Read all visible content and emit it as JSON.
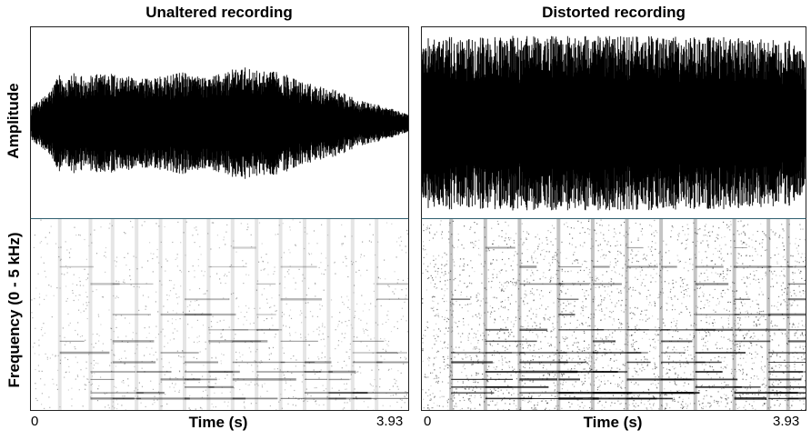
{
  "chart_data": [
    {
      "type": "waveform",
      "title": "Unaltered recording",
      "ylabel": "Amplitude",
      "xlabel": "Time (s)",
      "xlim": [
        0,
        3.93
      ],
      "x_ticks": [
        "0",
        "3.93"
      ],
      "envelope_x": [
        0,
        0.1,
        0.2,
        0.3,
        0.35,
        0.45,
        0.6,
        0.8,
        1.0,
        1.2,
        1.4,
        1.6,
        1.8,
        2.0,
        2.2,
        2.4,
        2.6,
        2.8,
        3.0,
        3.2,
        3.4,
        3.6,
        3.8,
        3.93
      ],
      "envelope_y": [
        0.18,
        0.25,
        0.35,
        0.55,
        0.4,
        0.55,
        0.5,
        0.55,
        0.5,
        0.48,
        0.5,
        0.55,
        0.48,
        0.55,
        0.6,
        0.55,
        0.55,
        0.45,
        0.4,
        0.35,
        0.25,
        0.2,
        0.14,
        0.1
      ]
    },
    {
      "type": "waveform",
      "title": "Distorted recording",
      "xlabel": "Time (s)",
      "xlim": [
        0,
        3.93
      ],
      "x_ticks": [
        "0",
        "3.93"
      ],
      "envelope_x": [
        0,
        0.2,
        0.5,
        1.0,
        1.5,
        2.0,
        2.5,
        3.0,
        3.5,
        3.8,
        3.93
      ],
      "envelope_y": [
        0.9,
        0.92,
        0.92,
        0.93,
        0.93,
        0.93,
        0.92,
        0.92,
        0.9,
        0.88,
        0.7
      ]
    },
    {
      "type": "heatmap",
      "subtype": "spectrogram",
      "ylabel": "Frequency (0 - 5 kHz)",
      "xlabel": "Time (s)",
      "xlim": [
        0,
        3.93
      ],
      "ylim_khz": [
        0,
        5
      ],
      "x_ticks": [
        "0",
        "3.93"
      ],
      "onsets_s": [
        0.3,
        0.62,
        0.85,
        1.1,
        1.35,
        1.6,
        1.85,
        2.1,
        2.35,
        2.6,
        2.85,
        3.1,
        3.35,
        3.6
      ],
      "density": 0.15
    },
    {
      "type": "heatmap",
      "subtype": "spectrogram",
      "xlabel": "Time (s)",
      "xlim": [
        0,
        3.93
      ],
      "ylim_khz": [
        0,
        5
      ],
      "x_ticks": [
        "0",
        "3.93"
      ],
      "onsets_s": [
        0.3,
        0.65,
        1.0,
        1.4,
        1.75,
        2.1,
        2.45,
        2.8,
        3.2,
        3.55,
        3.75
      ],
      "density": 0.6
    }
  ],
  "colors": {
    "trace": "#000000",
    "panel_divider": "#2f5f6f",
    "background": "#ffffff"
  }
}
